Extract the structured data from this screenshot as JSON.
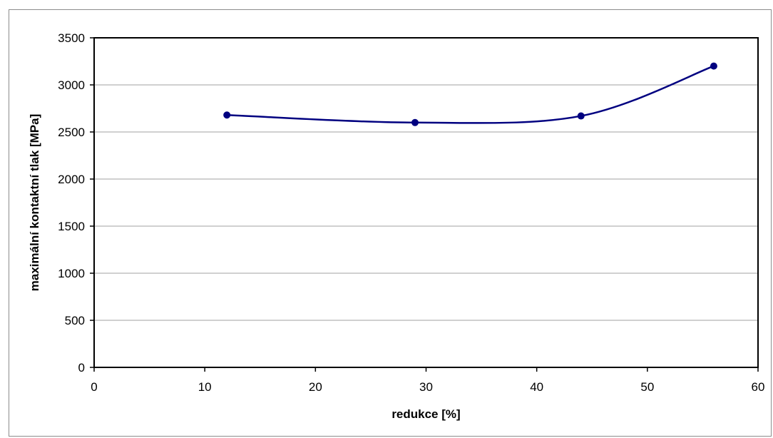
{
  "chart_data": {
    "type": "line",
    "title": "",
    "xlabel": "redukce [%]",
    "ylabel": "maximální kontaktní tlak [MPa]",
    "xlim": [
      0,
      60
    ],
    "ylim": [
      0,
      3500
    ],
    "x_ticks": [
      0,
      10,
      20,
      30,
      40,
      50,
      60
    ],
    "y_ticks": [
      0,
      500,
      1000,
      1500,
      2000,
      2500,
      3000,
      3500
    ],
    "grid": "horizontal",
    "legend": "none",
    "smooth": true,
    "series": [
      {
        "color": "#000080",
        "points": [
          {
            "x": 12,
            "y": 2680
          },
          {
            "x": 29,
            "y": 2600
          },
          {
            "x": 44,
            "y": 2670
          },
          {
            "x": 56,
            "y": 3200
          }
        ]
      }
    ]
  }
}
